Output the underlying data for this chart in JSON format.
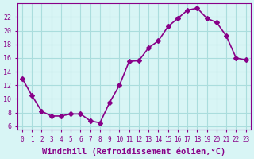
{
  "x": [
    0,
    1,
    2,
    3,
    4,
    5,
    6,
    7,
    8,
    9,
    10,
    11,
    12,
    13,
    14,
    15,
    16,
    17,
    18,
    19,
    20,
    21,
    22,
    23
  ],
  "y": [
    13.0,
    10.5,
    8.2,
    7.5,
    7.5,
    7.8,
    7.8,
    6.8,
    6.5,
    9.5,
    12.0,
    15.5,
    15.6,
    17.5,
    18.5,
    20.6,
    21.8,
    23.0,
    23.3,
    21.8,
    21.2,
    19.2,
    16.0,
    15.7
  ],
  "x_ticks": [
    0,
    1,
    2,
    3,
    4,
    5,
    6,
    7,
    8,
    9,
    10,
    11,
    12,
    13,
    14,
    15,
    16,
    17,
    18,
    19,
    20,
    21,
    22,
    23
  ],
  "y_ticks": [
    6,
    8,
    10,
    12,
    14,
    16,
    18,
    20,
    22
  ],
  "ylim": [
    5.5,
    24.0
  ],
  "xlim": [
    -0.5,
    23.5
  ],
  "xlabel": "Windchill (Refroidissement éolien,°C)",
  "line_color": "#880088",
  "marker": "D",
  "markersize": 3,
  "linewidth": 1.2,
  "bg_color": "#d8f5f5",
  "grid_color": "#aadddd",
  "xlabel_fontsize": 7.5,
  "tick_fontsize_x": 5.5,
  "tick_fontsize_y": 6.0
}
